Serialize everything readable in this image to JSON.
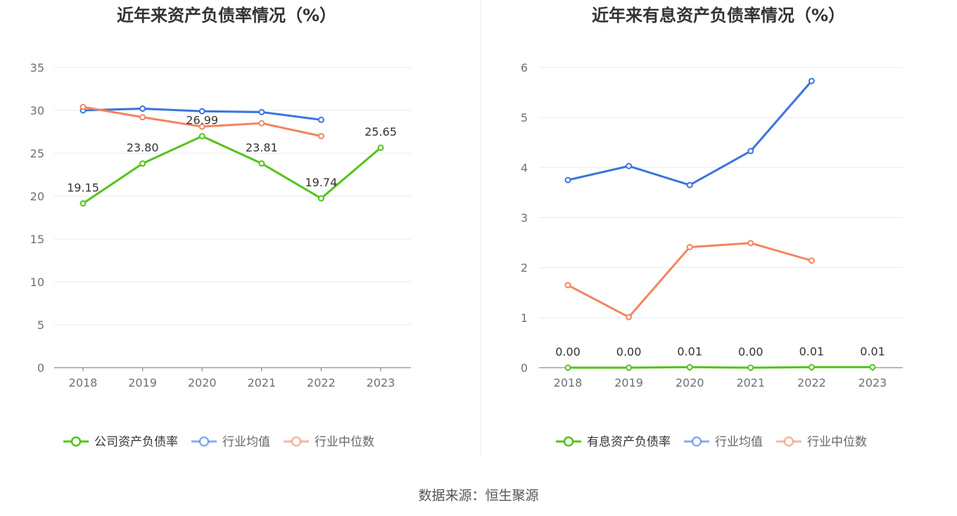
{
  "footer": {
    "source": "数据来源：恒生聚源"
  },
  "chart_data": [
    {
      "type": "line",
      "title": "近年来资产负债率情况（%）",
      "categories": [
        "2018",
        "2019",
        "2020",
        "2021",
        "2022",
        "2023"
      ],
      "ylim": [
        0,
        35
      ],
      "yticks": [
        0,
        5,
        10,
        15,
        20,
        25,
        30,
        35
      ],
      "series": [
        {
          "name": "公司资产负债率",
          "color": "#52c41a",
          "labeled": true,
          "values": [
            19.15,
            23.8,
            26.99,
            23.81,
            19.74,
            25.65
          ],
          "labels": [
            "19.15",
            "23.80",
            "26.99",
            "23.81",
            "19.74",
            "25.65"
          ]
        },
        {
          "name": "行业均值",
          "color": "#3b74e0",
          "labeled": false,
          "values": [
            30.0,
            30.2,
            29.9,
            29.8,
            28.9,
            null
          ]
        },
        {
          "name": "行业中位数",
          "color": "#f4845f",
          "labeled": false,
          "values": [
            30.4,
            29.2,
            28.1,
            28.5,
            27.0,
            null
          ]
        }
      ]
    },
    {
      "type": "line",
      "title": "近年来有息资产负债率情况（%）",
      "categories": [
        "2018",
        "2019",
        "2020",
        "2021",
        "2022",
        "2023"
      ],
      "ylim": [
        0,
        6
      ],
      "yticks": [
        0,
        1,
        2,
        3,
        4,
        5,
        6
      ],
      "series": [
        {
          "name": "有息资产负债率",
          "color": "#52c41a",
          "labeled": true,
          "values": [
            0.0,
            0.0,
            0.01,
            0.0,
            0.01,
            0.01
          ],
          "labels": [
            "0.00",
            "0.00",
            "0.01",
            "0.00",
            "0.01",
            "0.01"
          ]
        },
        {
          "name": "行业均值",
          "color": "#3b74e0",
          "labeled": false,
          "values": [
            3.75,
            4.03,
            3.65,
            4.33,
            5.73,
            null
          ]
        },
        {
          "name": "行业中位数",
          "color": "#f4845f",
          "labeled": false,
          "values": [
            1.65,
            1.01,
            2.41,
            2.49,
            2.14,
            null
          ]
        }
      ]
    }
  ]
}
